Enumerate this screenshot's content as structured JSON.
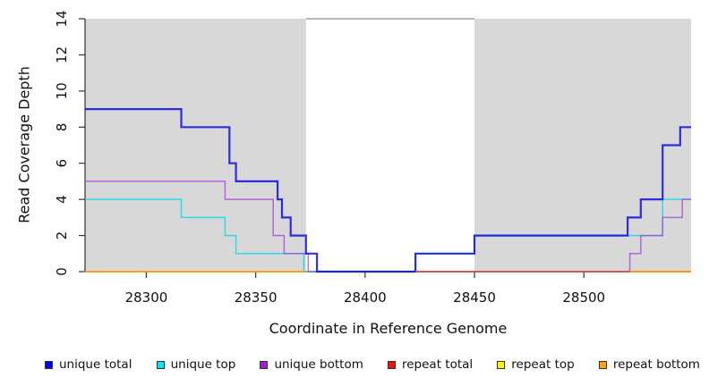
{
  "chart_data": {
    "type": "line",
    "subtype": "step-coverage",
    "title": "",
    "xlabel": "Coordinate in Reference Genome",
    "ylabel": "Read Coverage Depth",
    "xlim": [
      28272,
      28549
    ],
    "ylim": [
      0,
      14
    ],
    "x_ticks": [
      28300,
      28350,
      28400,
      28450,
      28500
    ],
    "y_ticks": [
      0,
      2,
      4,
      6,
      8,
      10,
      12,
      14
    ],
    "grid": false,
    "legend_position": "bottom",
    "plot_background": "#ffffff",
    "axis_color": "#333333",
    "shaded_regions": [
      {
        "x0": 28272,
        "x1": 28373,
        "color": "#d8d8d8"
      },
      {
        "x0": 28450,
        "x1": 28549,
        "color": "#d8d8d8"
      }
    ],
    "gap_top_border_color": "#8a8a8a",
    "draw_order": [
      1,
      2,
      0,
      4,
      3,
      5
    ],
    "series": [
      {
        "name": "unique total",
        "color": "#0f0fe0",
        "line_width": 2.2,
        "opacity": 0.85,
        "segments": [
          [
            [
              28272,
              9
            ],
            [
              28316,
              8
            ],
            [
              28338,
              6
            ],
            [
              28341,
              5
            ],
            [
              28360,
              4
            ],
            [
              28362,
              3
            ],
            [
              28366,
              2
            ],
            [
              28373,
              1
            ],
            [
              28378,
              0
            ],
            [
              28423,
              1
            ],
            [
              28450,
              2
            ],
            [
              28520,
              3
            ],
            [
              28526,
              4
            ],
            [
              28536,
              7
            ],
            [
              28544,
              8
            ],
            [
              28549,
              8
            ]
          ]
        ]
      },
      {
        "name": "unique top",
        "color": "#00dde4",
        "line_width": 1.5,
        "opacity": 0.8,
        "segments": [
          [
            [
              28272,
              4
            ],
            [
              28316,
              3
            ],
            [
              28336,
              2
            ],
            [
              28341,
              1
            ],
            [
              28372,
              0
            ],
            [
              28423,
              1
            ],
            [
              28450,
              2
            ],
            [
              28536,
              4
            ],
            [
              28549,
              4
            ]
          ]
        ]
      },
      {
        "name": "unique bottom",
        "color": "#a43ae0",
        "line_width": 1.5,
        "opacity": 0.72,
        "segments": [
          [
            [
              28272,
              5
            ],
            [
              28336,
              4
            ],
            [
              28358,
              2
            ],
            [
              28363,
              1
            ],
            [
              28374,
              0
            ],
            [
              28521,
              1
            ],
            [
              28526,
              2
            ],
            [
              28536,
              3
            ],
            [
              28545,
              4
            ],
            [
              28549,
              4
            ]
          ]
        ]
      },
      {
        "name": "repeat total",
        "color": "#e01535",
        "line_width": 1.6,
        "opacity": 0.8,
        "segments": [
          [
            [
              28423,
              0
            ],
            [
              28549,
              0
            ]
          ]
        ]
      },
      {
        "name": "repeat top",
        "color": "#f5ef00",
        "line_width": 1.2,
        "opacity": 1,
        "segments": [
          [
            [
              28423,
              0
            ],
            [
              28549,
              0
            ]
          ]
        ]
      },
      {
        "name": "repeat bottom",
        "color": "#ff9d00",
        "line_width": 1.8,
        "opacity": 1,
        "segments": [
          [
            [
              28272,
              0
            ],
            [
              28373,
              0
            ]
          ],
          [
            [
              28521,
              0
            ],
            [
              28549,
              0
            ]
          ]
        ]
      }
    ]
  },
  "legend": {
    "items": [
      {
        "label": "unique total",
        "color": "#0000ee"
      },
      {
        "label": "unique top",
        "color": "#00e8f0"
      },
      {
        "label": "unique bottom",
        "color": "#a21cd0"
      },
      {
        "label": "repeat total",
        "color": "#ee1111"
      },
      {
        "label": "repeat top",
        "color": "#fbf500"
      },
      {
        "label": "repeat bottom",
        "color": "#ffa300"
      }
    ]
  }
}
